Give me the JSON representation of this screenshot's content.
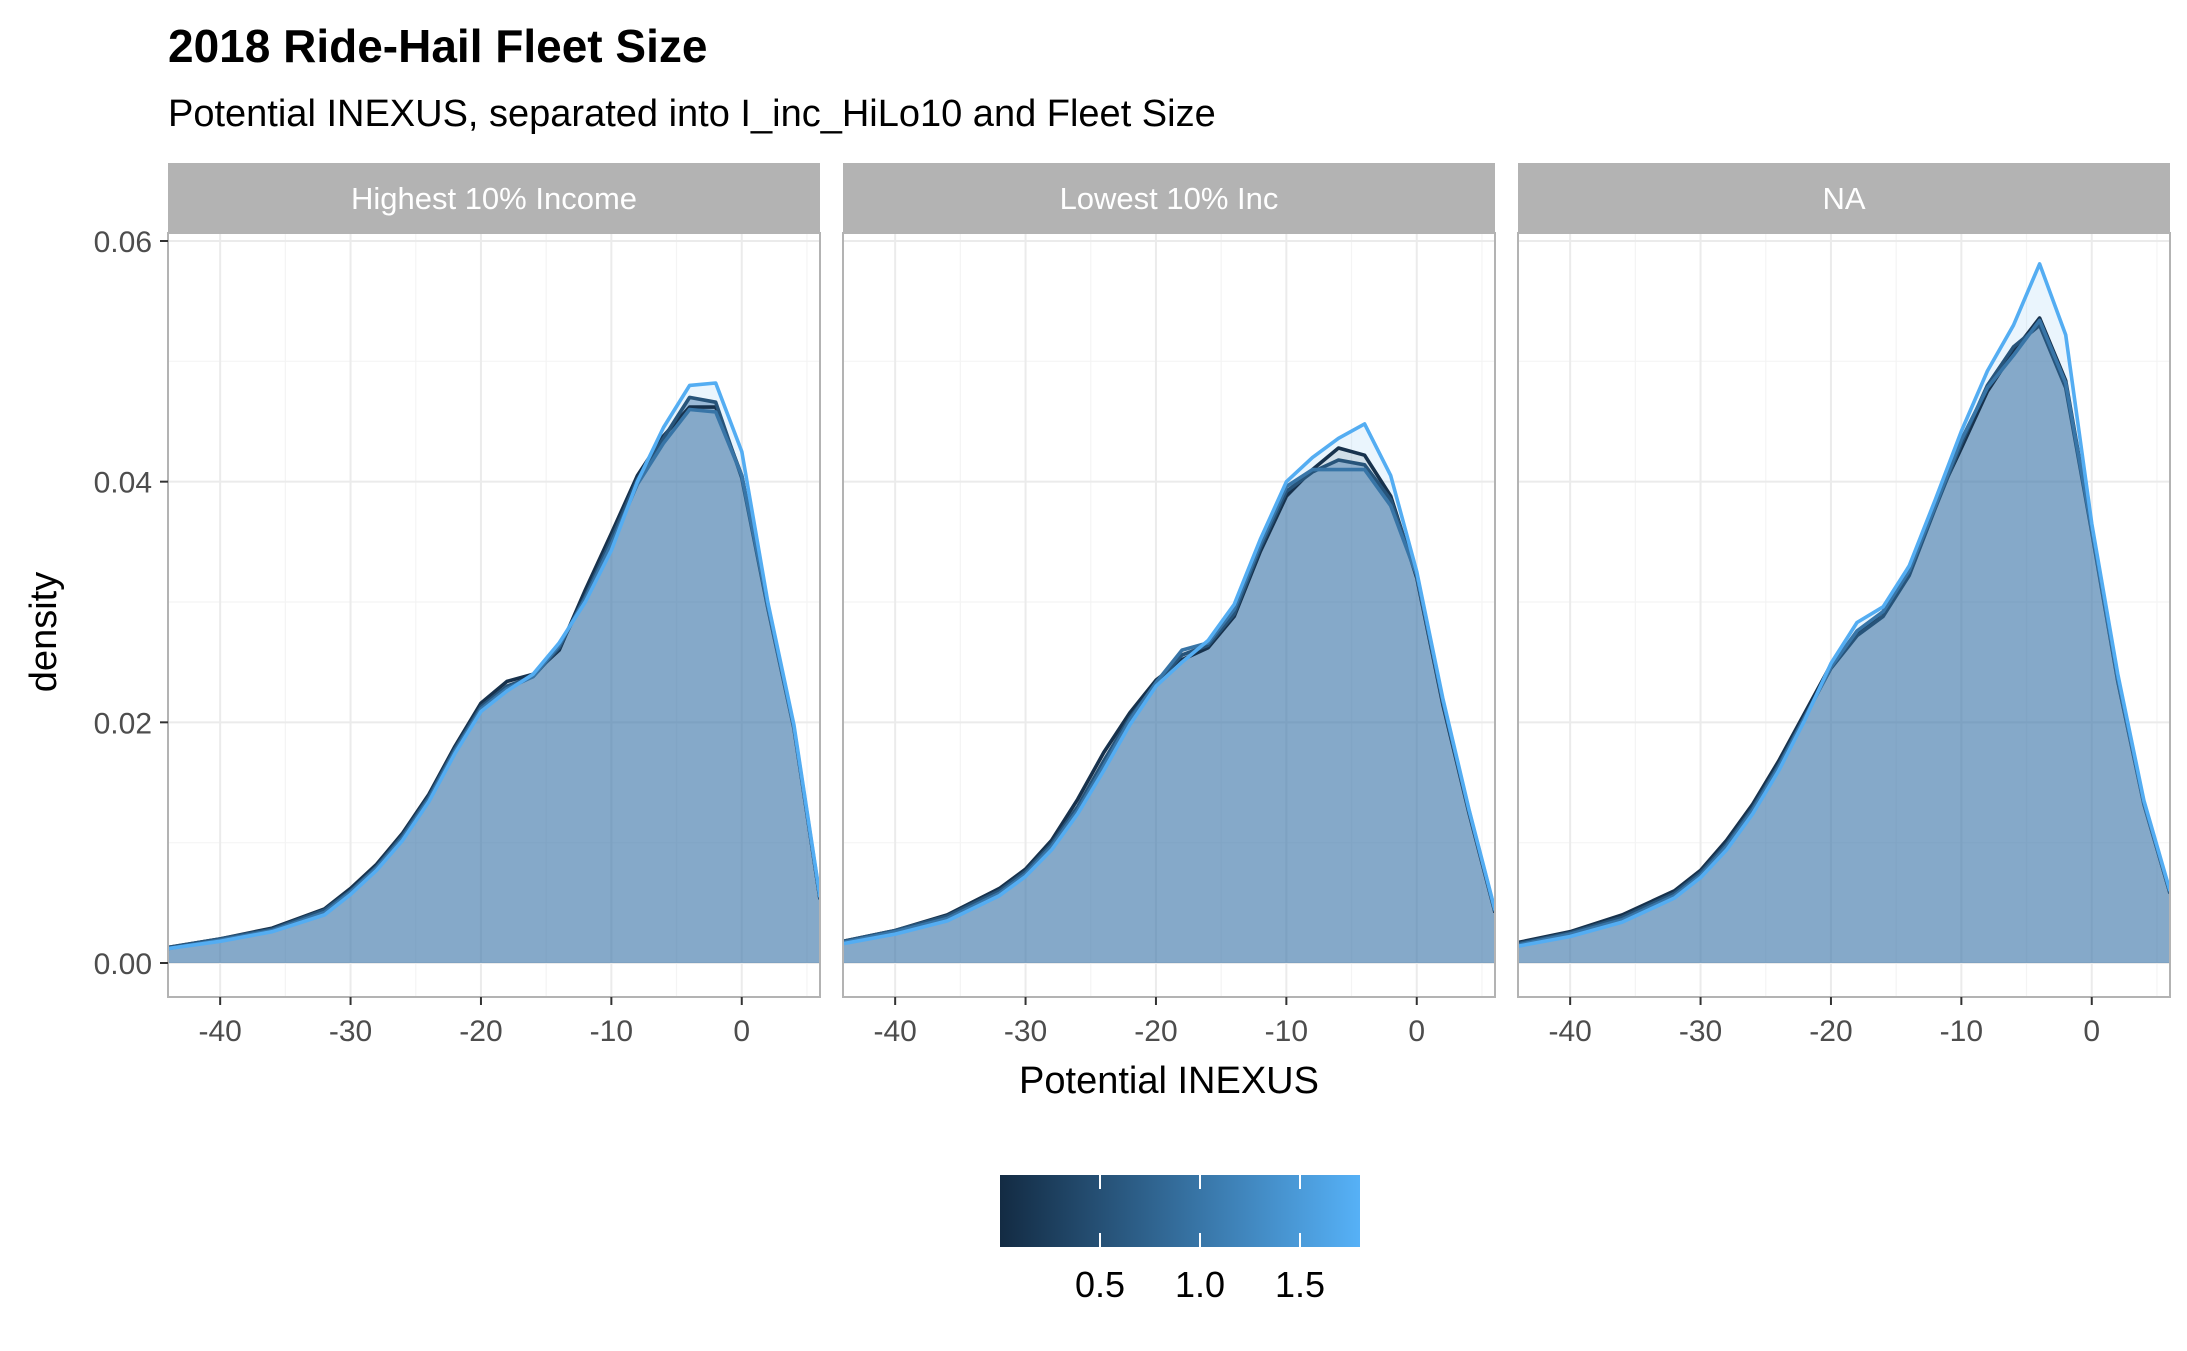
{
  "chart_data": {
    "type": "area",
    "title": "2018 Ride-Hail Fleet Size",
    "subtitle": "Potential INEXUS, separated into I_inc_HiLo10 and Fleet Size",
    "xlabel": "Potential INEXUS",
    "ylabel": "density",
    "xlim": [
      -44,
      6
    ],
    "ylim": [
      0,
      0.06
    ],
    "x_ticks": [
      -40,
      -30,
      -20,
      -10,
      0
    ],
    "x_tick_labels": [
      "-40",
      "-30",
      "-20",
      "-10",
      "0"
    ],
    "y_ticks": [
      0,
      0.02,
      0.04,
      0.06
    ],
    "y_tick_labels": [
      "0.00",
      "0.02",
      "0.04",
      "0.06"
    ],
    "grid": true,
    "legend": {
      "position": "bottom",
      "type": "colorbar",
      "min": 0.0,
      "max": 1.8,
      "breaks": [
        0.5,
        1.0,
        1.5
      ],
      "break_labels": [
        "0.5",
        "1.0",
        "1.5"
      ],
      "low_color": "#132B43",
      "high_color": "#56B1F7"
    },
    "colors": {
      "strip_bg": "#b3b3b3",
      "grid": "#ebebeb",
      "panel_border": "#b3b3b3",
      "fill": "#4f84b4"
    },
    "facets": [
      {
        "label": "Highest 10% Income",
        "series": [
          {
            "fleet": 0.1,
            "x": [
              -44,
              -40,
              -36,
              -32,
              -30,
              -28,
              -26,
              -24,
              -22,
              -20,
              -18,
              -16,
              -14,
              -12,
              -10,
              -8,
              -6,
              -4,
              -2,
              0,
              2,
              4,
              6
            ],
            "y": [
              0.0013,
              0.002,
              0.0029,
              0.0045,
              0.0062,
              0.0082,
              0.0108,
              0.014,
              0.018,
              0.0216,
              0.0234,
              0.024,
              0.026,
              0.031,
              0.0357,
              0.0405,
              0.0438,
              0.0462,
              0.0462,
              0.0405,
              0.0296,
              0.0196,
              0.0053
            ]
          },
          {
            "fleet": 0.55,
            "x": [
              -44,
              -40,
              -36,
              -32,
              -30,
              -28,
              -26,
              -24,
              -22,
              -20,
              -18,
              -16,
              -14,
              -12,
              -10,
              -8,
              -6,
              -4,
              -2,
              0,
              2,
              4,
              6
            ],
            "y": [
              0.0013,
              0.002,
              0.0028,
              0.0044,
              0.006,
              0.008,
              0.0106,
              0.0138,
              0.0178,
              0.0213,
              0.023,
              0.0238,
              0.0262,
              0.0305,
              0.0352,
              0.0402,
              0.0436,
              0.047,
              0.0466,
              0.0403,
              0.0295,
              0.0195,
              0.0053
            ]
          },
          {
            "fleet": 1.0,
            "x": [
              -44,
              -40,
              -36,
              -32,
              -30,
              -28,
              -26,
              -24,
              -22,
              -20,
              -18,
              -16,
              -14,
              -12,
              -10,
              -8,
              -6,
              -4,
              -2,
              0,
              2,
              4,
              6
            ],
            "y": [
              0.0012,
              0.0019,
              0.0027,
              0.0042,
              0.0059,
              0.0079,
              0.0104,
              0.0136,
              0.0176,
              0.0211,
              0.0228,
              0.0238,
              0.0264,
              0.0303,
              0.0348,
              0.0398,
              0.0432,
              0.046,
              0.0458,
              0.0405,
              0.0297,
              0.0196,
              0.0054
            ]
          },
          {
            "fleet": 1.75,
            "x": [
              -44,
              -40,
              -36,
              -32,
              -30,
              -28,
              -26,
              -24,
              -22,
              -20,
              -18,
              -16,
              -14,
              -12,
              -10,
              -8,
              -6,
              -4,
              -2,
              0,
              2,
              4,
              6
            ],
            "y": [
              0.0012,
              0.0018,
              0.0026,
              0.004,
              0.0057,
              0.0077,
              0.0102,
              0.0134,
              0.0174,
              0.0209,
              0.0226,
              0.024,
              0.0266,
              0.03,
              0.0343,
              0.04,
              0.0445,
              0.048,
              0.0482,
              0.0425,
              0.03,
              0.0198,
              0.0055
            ]
          }
        ]
      },
      {
        "label": "Lowest 10% Inc",
        "series": [
          {
            "fleet": 0.1,
            "x": [
              -44,
              -40,
              -36,
              -32,
              -30,
              -28,
              -26,
              -24,
              -22,
              -20,
              -18,
              -16,
              -14,
              -12,
              -10,
              -8,
              -6,
              -4,
              -2,
              0,
              2,
              4,
              6
            ],
            "y": [
              0.0018,
              0.0027,
              0.004,
              0.0062,
              0.0078,
              0.0102,
              0.0136,
              0.0175,
              0.0208,
              0.0235,
              0.0252,
              0.0262,
              0.0288,
              0.0342,
              0.0388,
              0.041,
              0.0428,
              0.0422,
              0.0388,
              0.032,
              0.0215,
              0.0125,
              0.0042
            ]
          },
          {
            "fleet": 0.55,
            "x": [
              -44,
              -40,
              -36,
              -32,
              -30,
              -28,
              -26,
              -24,
              -22,
              -20,
              -18,
              -16,
              -14,
              -12,
              -10,
              -8,
              -6,
              -4,
              -2,
              0,
              2,
              4,
              6
            ],
            "y": [
              0.0018,
              0.0027,
              0.0039,
              0.006,
              0.0076,
              0.0099,
              0.013,
              0.0168,
              0.0204,
              0.0232,
              0.0256,
              0.0264,
              0.029,
              0.0345,
              0.0392,
              0.0408,
              0.0418,
              0.0414,
              0.0385,
              0.0322,
              0.0217,
              0.0126,
              0.0043
            ]
          },
          {
            "fleet": 1.0,
            "x": [
              -44,
              -40,
              -36,
              -32,
              -30,
              -28,
              -26,
              -24,
              -22,
              -20,
              -18,
              -16,
              -14,
              -12,
              -10,
              -8,
              -6,
              -4,
              -2,
              0,
              2,
              4,
              6
            ],
            "y": [
              0.0017,
              0.0026,
              0.0037,
              0.0058,
              0.0074,
              0.0097,
              0.0127,
              0.0164,
              0.0202,
              0.0233,
              0.026,
              0.0266,
              0.0294,
              0.0348,
              0.0396,
              0.041,
              0.041,
              0.041,
              0.038,
              0.0322,
              0.0218,
              0.0127,
              0.0043
            ]
          },
          {
            "fleet": 1.75,
            "x": [
              -44,
              -40,
              -36,
              -32,
              -30,
              -28,
              -26,
              -24,
              -22,
              -20,
              -18,
              -16,
              -14,
              -12,
              -10,
              -8,
              -6,
              -4,
              -2,
              0,
              2,
              4,
              6
            ],
            "y": [
              0.0016,
              0.0024,
              0.0035,
              0.0056,
              0.0072,
              0.0094,
              0.0124,
              0.016,
              0.0198,
              0.023,
              0.025,
              0.0268,
              0.0298,
              0.0352,
              0.04,
              0.042,
              0.0436,
              0.0448,
              0.0405,
              0.0325,
              0.022,
              0.0128,
              0.0044
            ]
          }
        ]
      },
      {
        "label": "NA",
        "series": [
          {
            "fleet": 0.1,
            "x": [
              -44,
              -40,
              -36,
              -32,
              -30,
              -28,
              -26,
              -24,
              -22,
              -20,
              -18,
              -16,
              -14,
              -12,
              -10,
              -8,
              -6,
              -4,
              -2,
              0,
              2,
              4,
              6
            ],
            "y": [
              0.0017,
              0.0026,
              0.004,
              0.006,
              0.0077,
              0.0102,
              0.0132,
              0.0168,
              0.0208,
              0.0248,
              0.0274,
              0.0292,
              0.0325,
              0.0382,
              0.0428,
              0.0475,
              0.0508,
              0.0536,
              0.0484,
              0.036,
              0.0235,
              0.0133,
              0.0058
            ]
          },
          {
            "fleet": 0.55,
            "x": [
              -44,
              -40,
              -36,
              -32,
              -30,
              -28,
              -26,
              -24,
              -22,
              -20,
              -18,
              -16,
              -14,
              -12,
              -10,
              -8,
              -6,
              -4,
              -2,
              0,
              2,
              4,
              6
            ],
            "y": [
              0.0016,
              0.0025,
              0.0038,
              0.0058,
              0.0075,
              0.0099,
              0.0129,
              0.0165,
              0.0205,
              0.0245,
              0.0272,
              0.0288,
              0.0322,
              0.0378,
              0.0432,
              0.048,
              0.0512,
              0.053,
              0.0478,
              0.0358,
              0.0234,
              0.0132,
              0.0058
            ]
          },
          {
            "fleet": 1.0,
            "x": [
              -44,
              -40,
              -36,
              -32,
              -30,
              -28,
              -26,
              -24,
              -22,
              -20,
              -18,
              -16,
              -14,
              -12,
              -10,
              -8,
              -6,
              -4,
              -2,
              0,
              2,
              4,
              6
            ],
            "y": [
              0.0015,
              0.0024,
              0.0036,
              0.0056,
              0.0073,
              0.0097,
              0.0127,
              0.0163,
              0.0204,
              0.0246,
              0.0276,
              0.0292,
              0.0326,
              0.038,
              0.0435,
              0.0478,
              0.0505,
              0.0534,
              0.0482,
              0.036,
              0.0236,
              0.0133,
              0.0059
            ]
          },
          {
            "fleet": 1.75,
            "x": [
              -44,
              -40,
              -36,
              -32,
              -30,
              -28,
              -26,
              -24,
              -22,
              -20,
              -18,
              -16,
              -14,
              -12,
              -10,
              -8,
              -6,
              -4,
              -2,
              0,
              2,
              4,
              6
            ],
            "y": [
              0.0014,
              0.0022,
              0.0034,
              0.0054,
              0.0071,
              0.0094,
              0.0124,
              0.016,
              0.0202,
              0.0249,
              0.0283,
              0.0296,
              0.033,
              0.0385,
              0.0442,
              0.0492,
              0.053,
              0.0581,
              0.0522,
              0.0365,
              0.024,
              0.0135,
              0.006
            ]
          }
        ]
      }
    ]
  }
}
